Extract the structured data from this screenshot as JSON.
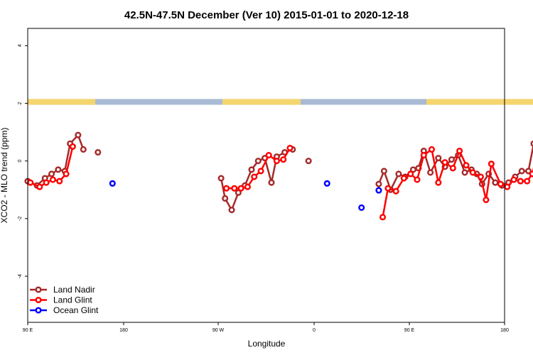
{
  "chart_data": {
    "type": "line",
    "title": "42.5N-47.5N December (Ver 10)   2015-01-01 to 2020-12-18",
    "xlabel": "Longitude",
    "ylabel": "XCO2 - MLO trend (ppm)",
    "xlim": [
      90,
      450
    ],
    "ylim": [
      -5.6,
      4.6
    ],
    "x_ticks": [
      {
        "value": 90,
        "label": "90 E"
      },
      {
        "value": 180,
        "label": "180"
      },
      {
        "value": 270,
        "label": "90 W"
      },
      {
        "value": 360,
        "label": "0"
      },
      {
        "value": 450,
        "label": "90 E"
      },
      {
        "value": 540,
        "label": "180"
      }
    ],
    "y_ticks": [
      {
        "value": -4,
        "label": "-4"
      },
      {
        "value": -2,
        "label": "-2"
      },
      {
        "value": 0,
        "label": "0"
      },
      {
        "value": 2,
        "label": "2"
      },
      {
        "value": 4,
        "label": "4"
      }
    ],
    "legend_position": "bottom-left",
    "grid": false,
    "land_ocean_band": {
      "y_range": [
        1.95,
        2.15
      ],
      "land_color": "#F5D56E",
      "ocean_color": "#A9BAD4",
      "land_segments": [
        [
          90,
          141
        ],
        [
          237,
          296
        ],
        [
          391,
          493
        ]
      ]
    },
    "series": [
      {
        "name": "Land Nadir",
        "color": "#A52A2A",
        "segments": [
          [
            [
              90,
              -0.7
            ],
            [
              97,
              -0.85
            ],
            [
              103,
              -0.6
            ],
            [
              108,
              -0.45
            ],
            [
              113,
              -0.3
            ],
            [
              118,
              -0.35
            ],
            [
              122,
              0.6
            ],
            [
              128,
              0.9
            ],
            [
              132,
              0.4
            ]
          ],
          [
            [
              143,
              0.3
            ]
          ],
          [
            [
              236,
              -0.6
            ],
            [
              239,
              -1.3
            ],
            [
              244,
              -1.7
            ],
            [
              249,
              -1.1
            ],
            [
              254,
              -0.85
            ],
            [
              259,
              -0.3
            ],
            [
              264,
              0.0
            ],
            [
              269,
              0.1
            ],
            [
              274,
              -0.75
            ],
            [
              278,
              0.15
            ],
            [
              284,
              0.3
            ],
            [
              290,
              0.4
            ]
          ],
          [
            [
              302,
              0.0
            ]
          ],
          [
            [
              355,
              -0.8
            ],
            [
              359,
              -0.35
            ],
            [
              364,
              -1.0
            ],
            [
              370,
              -0.45
            ],
            [
              375,
              -0.55
            ],
            [
              381,
              -0.3
            ],
            [
              385,
              -0.25
            ],
            [
              389,
              0.35
            ],
            [
              394,
              -0.4
            ],
            [
              400,
              0.1
            ],
            [
              405,
              -0.2
            ],
            [
              410,
              0.05
            ],
            [
              415,
              0.2
            ],
            [
              420,
              -0.4
            ],
            [
              425,
              -0.3
            ],
            [
              429,
              -0.45
            ],
            [
              433,
              -0.8
            ],
            [
              438,
              -0.45
            ],
            [
              443,
              -0.75
            ],
            [
              448,
              -0.85
            ],
            [
              453,
              -0.75
            ],
            [
              458,
              -0.55
            ],
            [
              463,
              -0.35
            ],
            [
              468,
              -0.35
            ],
            [
              472,
              0.6
            ],
            [
              477,
              0.9
            ],
            [
              481,
              0.4
            ]
          ],
          [
            [
              492,
              0.3
            ]
          ]
        ]
      },
      {
        "name": "Land Glint",
        "color": "#FF0000",
        "segments": [
          [
            [
              92,
              -0.75
            ],
            [
              99,
              -0.9
            ],
            [
              104,
              -0.75
            ],
            [
              109,
              -0.65
            ],
            [
              114,
              -0.7
            ],
            [
              119,
              -0.45
            ],
            [
              124,
              0.5
            ]
          ],
          [
            [
              240,
              -0.95
            ],
            [
              246,
              -0.95
            ],
            [
              251,
              -0.95
            ],
            [
              256,
              -0.9
            ],
            [
              261,
              -0.55
            ],
            [
              266,
              -0.35
            ],
            [
              272,
              0.2
            ],
            [
              278,
              0.0
            ],
            [
              283,
              0.05
            ],
            [
              288,
              0.45
            ]
          ],
          [
            [
              358,
              -1.95
            ],
            [
              362,
              -0.95
            ],
            [
              368,
              -1.05
            ],
            [
              374,
              -0.6
            ],
            [
              379,
              -0.45
            ],
            [
              384,
              -0.65
            ],
            [
              389,
              0.2
            ],
            [
              395,
              0.4
            ],
            [
              400,
              -0.75
            ],
            [
              405,
              -0.05
            ],
            [
              411,
              -0.25
            ],
            [
              416,
              0.35
            ],
            [
              421,
              -0.15
            ],
            [
              426,
              -0.4
            ],
            [
              432,
              -0.55
            ],
            [
              436,
              -1.35
            ],
            [
              440,
              -0.1
            ],
            [
              447,
              -0.8
            ],
            [
              452,
              -0.9
            ],
            [
              457,
              -0.65
            ],
            [
              462,
              -0.7
            ],
            [
              467,
              -0.7
            ],
            [
              471,
              -0.45
            ],
            [
              476,
              0.55
            ]
          ]
        ]
      },
      {
        "name": "Ocean Glint",
        "color": "#0000FF",
        "segments": [
          [
            [
              154,
              -0.78
            ]
          ],
          [
            [
              316,
              -0.78
            ]
          ],
          [
            [
              342,
              -1.62
            ]
          ],
          [
            [
              355,
              -1.02
            ]
          ],
          [
            [
              488,
              -0.78
            ]
          ]
        ]
      }
    ]
  }
}
